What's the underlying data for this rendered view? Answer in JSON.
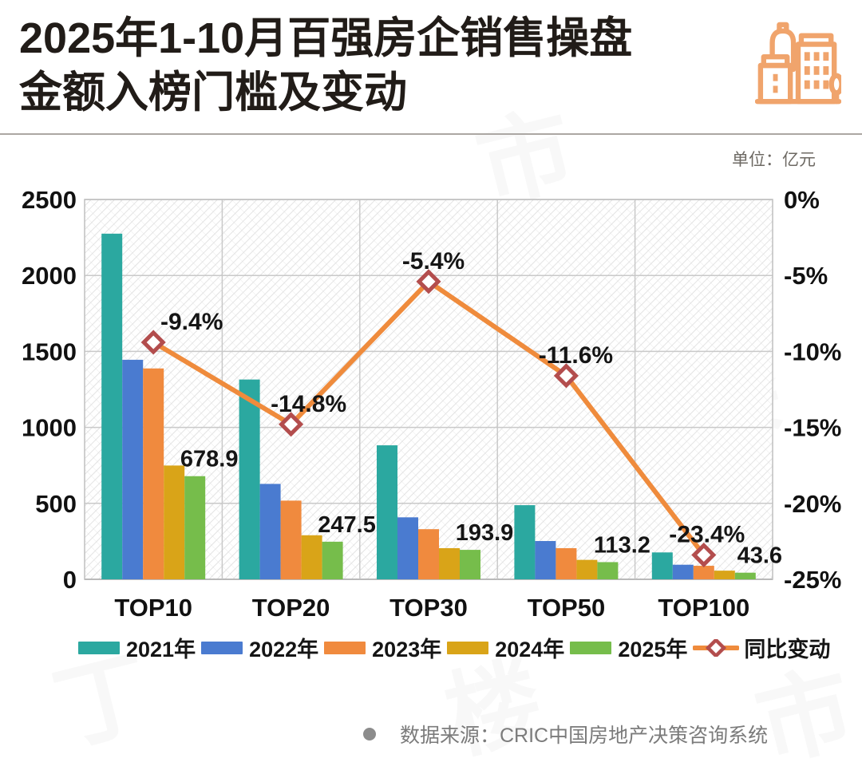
{
  "header": {
    "title_line1": "2025年1-10月百强房企销售操盘",
    "title_line2": "金额入榜门槛及变动",
    "unit_label": "单位：亿元"
  },
  "footer": {
    "source_text": "数据来源：CRIC中国房地产决策咨询系统"
  },
  "watermark_text": "丁祖昱评楼市",
  "icon": {
    "name": "buildings-icon",
    "color": "#F0A46C"
  },
  "chart_data": {
    "type": "bar+line",
    "title": "百强房企销售操盘金额入榜门槛及变动",
    "unit": "亿元",
    "categories": [
      "TOP10",
      "TOP20",
      "TOP30",
      "TOP50",
      "TOP100"
    ],
    "series": [
      {
        "name": "2021年",
        "color": "#2BA8A0",
        "values": [
          2275,
          1315,
          882,
          488,
          177
        ]
      },
      {
        "name": "2022年",
        "color": "#4A7BD0",
        "values": [
          1445,
          628,
          408,
          252,
          96
        ]
      },
      {
        "name": "2023年",
        "color": "#F08A3E",
        "values": [
          1388,
          518,
          330,
          205,
          89
        ]
      },
      {
        "name": "2024年",
        "color": "#D9A418",
        "values": [
          749,
          290,
          205,
          128,
          57
        ]
      },
      {
        "name": "2025年",
        "color": "#76BD4B",
        "values": [
          678.9,
          247.5,
          193.9,
          113.2,
          43.6
        ],
        "value_labels": [
          "678.9",
          "247.5",
          "193.9",
          "113.2",
          "43.6"
        ]
      }
    ],
    "line_series": {
      "name": "同比变动",
      "color": "#EF8B3C",
      "marker_fill": "#FFFFFF",
      "marker_stroke": "#B34D4D",
      "values": [
        -9.4,
        -14.8,
        -5.4,
        -11.6,
        -23.4
      ],
      "labels": [
        "-9.4%",
        "-14.8%",
        "-5.4%",
        "-11.6%",
        "-23.4%"
      ],
      "label_dx": [
        48,
        22,
        6,
        12,
        4
      ]
    },
    "left_axis": {
      "min": 0,
      "max": 2500,
      "ticks": [
        "2500",
        "2000",
        "1500",
        "1000",
        "500",
        "0"
      ]
    },
    "right_axis": {
      "min": -25,
      "max": 0,
      "ticks": [
        "0%",
        "-5%",
        "-10%",
        "-15%",
        "-20%",
        "-25%"
      ]
    },
    "grid": true,
    "legend_position": "bottom",
    "plot_colors": {
      "gridline": "#c9c9c9",
      "border": "#bfbfbf",
      "axis_bottom": "#a8a8a8",
      "hatch": "#dedede",
      "label_text": "#151515"
    }
  }
}
